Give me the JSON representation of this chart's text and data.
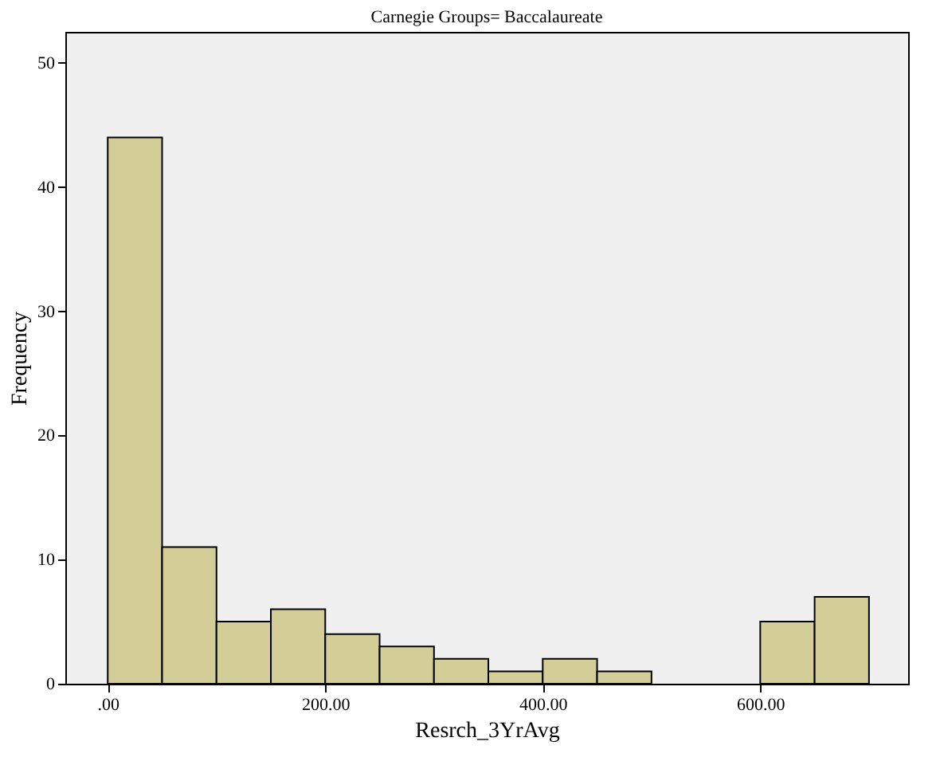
{
  "chart_data": {
    "type": "histogram",
    "title": "Carnegie Groups= Baccalaureate",
    "xlabel": "Resrch_3YrAvg",
    "ylabel": "Frequency",
    "bins": [
      0,
      50,
      100,
      150,
      200,
      250,
      300,
      350,
      400,
      450,
      500,
      550,
      600,
      650,
      700
    ],
    "values": [
      44,
      11,
      5,
      6,
      4,
      3,
      2,
      1,
      2,
      1,
      0,
      0,
      5,
      7
    ],
    "color": "#d3ce98",
    "xlim": [
      -39,
      736
    ],
    "xticks": [
      {
        "value": 0,
        "label": ".00"
      },
      {
        "value": 200,
        "label": "200.00"
      },
      {
        "value": 400,
        "label": "400.00"
      },
      {
        "value": 600,
        "label": "600.00"
      }
    ],
    "ylim": [
      0,
      52.5
    ],
    "yticks": [
      0,
      10,
      20,
      30,
      40,
      50
    ],
    "grid": false
  }
}
